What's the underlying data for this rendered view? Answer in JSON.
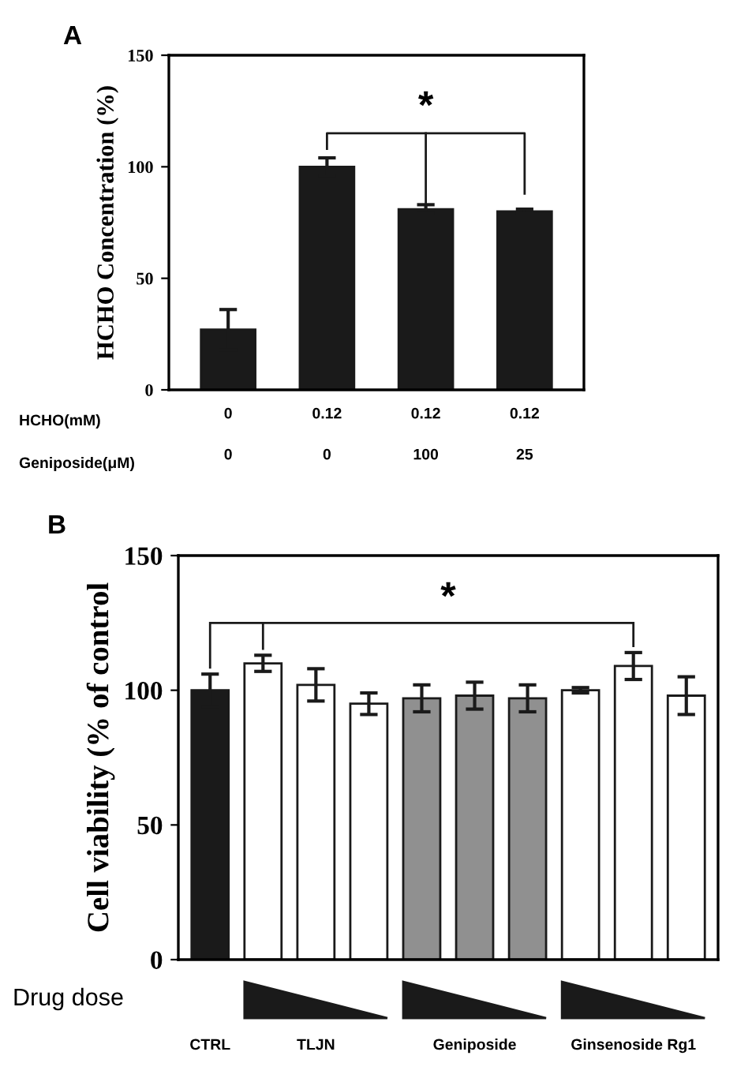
{
  "chart_data": [
    {
      "type": "bar",
      "ylabel": "HCHO Concentration (%)",
      "categories": [
        "0\n0",
        "0.12\n0",
        "0.12\n100",
        "0.12\n25"
      ],
      "values": [
        27,
        100,
        81,
        80
      ],
      "errors": [
        9,
        4,
        2,
        1
      ],
      "color": "#1a1a1a",
      "ylim": [
        0,
        150
      ],
      "yticks": [
        0,
        50,
        100,
        150
      ],
      "annotations": [
        "A",
        "*",
        "HCHO(mM)",
        "Geniposide(μM)"
      ]
    },
    {
      "type": "bar",
      "ylabel": "Cell viability (% of control",
      "categories": [
        "CTRL",
        null,
        "TLJN",
        null,
        null,
        "Geniposide",
        null,
        null,
        "Ginsenoside Rg1",
        null
      ],
      "values": [
        100,
        110,
        102,
        95,
        97,
        98,
        97,
        100,
        109,
        98
      ],
      "errors": [
        6,
        3,
        6,
        4,
        5,
        5,
        5,
        1,
        5,
        7
      ],
      "colors": [
        "#1a1a1a",
        "#ffffff",
        "#ffffff",
        "#ffffff",
        "#909090",
        "#909090",
        "#909090",
        "#ffffff",
        "#ffffff",
        "#ffffff"
      ],
      "ylim": [
        0,
        150
      ],
      "yticks": [
        0,
        50,
        100,
        150
      ],
      "annotations": [
        "B",
        "*",
        "Drug dose"
      ]
    }
  ]
}
